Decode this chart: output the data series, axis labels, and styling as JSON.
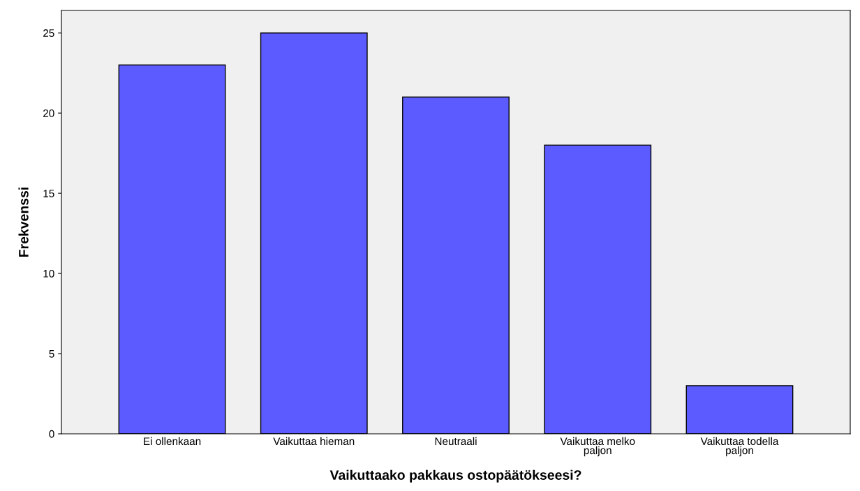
{
  "chart_data": {
    "type": "bar",
    "xlabel": "Vaikuttaako pakkaus ostopäätökseesi?",
    "ylabel": "Frekvenssi",
    "categories": [
      "Ei ollenkaan",
      "Vaikuttaa hieman",
      "Neutraali",
      "Vaikuttaa melko\npaljon",
      "Vaikuttaa todella\npaljon"
    ],
    "values": [
      23,
      25,
      21,
      18,
      3
    ],
    "color": "#5b5bff",
    "ylim": [
      0,
      26.4
    ],
    "yticks": [
      0,
      5,
      10,
      15,
      20,
      25
    ],
    "grid": false,
    "legend": false
  }
}
